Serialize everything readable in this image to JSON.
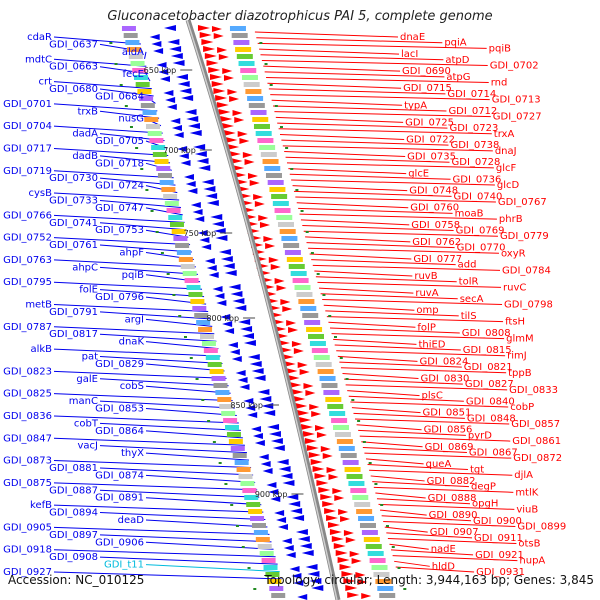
{
  "title": "Gluconacetobacter diazotrophicus PAI 5, complete genome",
  "accession": "Accession: NC_010125",
  "summary": "Topology: circular; Length: 3,944,163 bp; Genes: 3,845",
  "colors": {
    "forward": "#ff0000",
    "reverse": "#0000ee",
    "rna": "#00bbdd",
    "backbone": "#888888",
    "tick": "#228b22"
  },
  "kbp_ticks": [
    "650 kbp",
    "700 kbp",
    "750 kbp",
    "800 kbp",
    "850 kbp",
    "900 kbp"
  ],
  "left_labels": [
    {
      "t": "cdaR",
      "c": "reverse"
    },
    {
      "t": "GDI_0637",
      "c": "reverse"
    },
    {
      "t": "aldA",
      "c": "reverse"
    },
    {
      "t": "mdtC",
      "c": "reverse"
    },
    {
      "t": "GDI_0663",
      "c": "reverse"
    },
    {
      "t": "fecE",
      "c": "reverse"
    },
    {
      "t": "crt",
      "c": "reverse"
    },
    {
      "t": "GDI_0680",
      "c": "reverse"
    },
    {
      "t": "GDI_0684",
      "c": "reverse"
    },
    {
      "t": "GDI_0701",
      "c": "reverse"
    },
    {
      "t": "trxB",
      "c": "reverse"
    },
    {
      "t": "nusG",
      "c": "reverse"
    },
    {
      "t": "GDI_0704",
      "c": "reverse"
    },
    {
      "t": "dadA",
      "c": "reverse"
    },
    {
      "t": "GDI_0705",
      "c": "reverse"
    },
    {
      "t": "GDI_0717",
      "c": "reverse"
    },
    {
      "t": "dadB",
      "c": "reverse"
    },
    {
      "t": "GDI_0718",
      "c": "reverse"
    },
    {
      "t": "GDI_0719",
      "c": "reverse"
    },
    {
      "t": "GDI_0730",
      "c": "reverse"
    },
    {
      "t": "GDI_0724",
      "c": "reverse"
    },
    {
      "t": "cysB",
      "c": "reverse"
    },
    {
      "t": "GDI_0733",
      "c": "reverse"
    },
    {
      "t": "GDI_0747",
      "c": "reverse"
    },
    {
      "t": "GDI_0766",
      "c": "reverse"
    },
    {
      "t": "GDI_0741",
      "c": "reverse"
    },
    {
      "t": "GDI_0753",
      "c": "reverse"
    },
    {
      "t": "GDI_0752",
      "c": "reverse"
    },
    {
      "t": "GDI_0761",
      "c": "reverse"
    },
    {
      "t": "ahpF",
      "c": "reverse"
    },
    {
      "t": "GDI_0763",
      "c": "reverse"
    },
    {
      "t": "ahpC",
      "c": "reverse"
    },
    {
      "t": "pqiB",
      "c": "reverse"
    },
    {
      "t": "GDI_0795",
      "c": "reverse"
    },
    {
      "t": "folE",
      "c": "reverse"
    },
    {
      "t": "GDI_0796",
      "c": "reverse"
    },
    {
      "t": "metB",
      "c": "reverse"
    },
    {
      "t": "GDI_0791",
      "c": "reverse"
    },
    {
      "t": "argI",
      "c": "reverse"
    },
    {
      "t": "GDI_0787",
      "c": "reverse"
    },
    {
      "t": "GDI_0817",
      "c": "reverse"
    },
    {
      "t": "dnaK",
      "c": "reverse"
    },
    {
      "t": "alkB",
      "c": "reverse"
    },
    {
      "t": "pat",
      "c": "reverse"
    },
    {
      "t": "GDI_0829",
      "c": "reverse"
    },
    {
      "t": "GDI_0823",
      "c": "reverse"
    },
    {
      "t": "galE",
      "c": "reverse"
    },
    {
      "t": "cobS",
      "c": "reverse"
    },
    {
      "t": "GDI_0825",
      "c": "reverse"
    },
    {
      "t": "manC",
      "c": "reverse"
    },
    {
      "t": "GDI_0853",
      "c": "reverse"
    },
    {
      "t": "GDI_0836",
      "c": "reverse"
    },
    {
      "t": "cobT",
      "c": "reverse"
    },
    {
      "t": "GDI_0864",
      "c": "reverse"
    },
    {
      "t": "GDI_0847",
      "c": "reverse"
    },
    {
      "t": "vacJ",
      "c": "reverse"
    },
    {
      "t": "thyX",
      "c": "reverse"
    },
    {
      "t": "GDI_0873",
      "c": "reverse"
    },
    {
      "t": "GDI_0881",
      "c": "reverse"
    },
    {
      "t": "GDI_0874",
      "c": "reverse"
    },
    {
      "t": "GDI_0875",
      "c": "reverse"
    },
    {
      "t": "GDI_0887",
      "c": "reverse"
    },
    {
      "t": "GDI_0891",
      "c": "reverse"
    },
    {
      "t": "kefB",
      "c": "reverse"
    },
    {
      "t": "GDI_0894",
      "c": "reverse"
    },
    {
      "t": "deaD",
      "c": "reverse"
    },
    {
      "t": "GDI_0905",
      "c": "reverse"
    },
    {
      "t": "GDI_0897",
      "c": "reverse"
    },
    {
      "t": "GDI_0906",
      "c": "reverse"
    },
    {
      "t": "GDI_0918",
      "c": "reverse"
    },
    {
      "t": "GDI_0908",
      "c": "reverse"
    },
    {
      "t": "GDI_t11",
      "c": "rna"
    },
    {
      "t": "GDI_0927",
      "c": "reverse"
    }
  ],
  "right_labels": [
    {
      "t": "dnaE",
      "c": "forward"
    },
    {
      "t": "pqiA",
      "c": "forward"
    },
    {
      "t": "pqiB",
      "c": "forward"
    },
    {
      "t": "lacI",
      "c": "forward"
    },
    {
      "t": "atpD",
      "c": "forward"
    },
    {
      "t": "GDI_0702",
      "c": "forward"
    },
    {
      "t": "GDI_0690",
      "c": "forward"
    },
    {
      "t": "atpG",
      "c": "forward"
    },
    {
      "t": "rnd",
      "c": "forward"
    },
    {
      "t": "GDI_0715",
      "c": "forward"
    },
    {
      "t": "GDI_0714",
      "c": "forward"
    },
    {
      "t": "GDI_0713",
      "c": "forward"
    },
    {
      "t": "typA",
      "c": "forward"
    },
    {
      "t": "GDI_0712",
      "c": "forward"
    },
    {
      "t": "GDI_0727",
      "c": "forward"
    },
    {
      "t": "GDI_0725",
      "c": "forward"
    },
    {
      "t": "GDI_0723",
      "c": "forward"
    },
    {
      "t": "trxA",
      "c": "forward"
    },
    {
      "t": "GDI_0722",
      "c": "forward"
    },
    {
      "t": "GDI_0738",
      "c": "forward"
    },
    {
      "t": "dnaJ",
      "c": "forward"
    },
    {
      "t": "GDI_0735",
      "c": "forward"
    },
    {
      "t": "GDI_0728",
      "c": "forward"
    },
    {
      "t": "glcF",
      "c": "forward"
    },
    {
      "t": "glcE",
      "c": "forward"
    },
    {
      "t": "GDI_0736",
      "c": "forward"
    },
    {
      "t": "glcD",
      "c": "forward"
    },
    {
      "t": "GDI_0748",
      "c": "forward"
    },
    {
      "t": "GDI_0740",
      "c": "forward"
    },
    {
      "t": "GDI_0767",
      "c": "forward"
    },
    {
      "t": "GDI_0760",
      "c": "forward"
    },
    {
      "t": "moaB",
      "c": "forward"
    },
    {
      "t": "phrB",
      "c": "forward"
    },
    {
      "t": "GDI_0758",
      "c": "forward"
    },
    {
      "t": "GDI_0769",
      "c": "forward"
    },
    {
      "t": "GDI_0779",
      "c": "forward"
    },
    {
      "t": "GDI_0762",
      "c": "forward"
    },
    {
      "t": "GDI_0770",
      "c": "forward"
    },
    {
      "t": "oxyR",
      "c": "forward"
    },
    {
      "t": "GDI_0777",
      "c": "forward"
    },
    {
      "t": "add",
      "c": "forward"
    },
    {
      "t": "GDI_0784",
      "c": "forward"
    },
    {
      "t": "ruvB",
      "c": "forward"
    },
    {
      "t": "tolR",
      "c": "forward"
    },
    {
      "t": "ruvC",
      "c": "forward"
    },
    {
      "t": "ruvA",
      "c": "forward"
    },
    {
      "t": "secA",
      "c": "forward"
    },
    {
      "t": "GDI_0798",
      "c": "forward"
    },
    {
      "t": "omp",
      "c": "forward"
    },
    {
      "t": "tilS",
      "c": "forward"
    },
    {
      "t": "ftsH",
      "c": "forward"
    },
    {
      "t": "folP",
      "c": "forward"
    },
    {
      "t": "GDI_0808",
      "c": "forward"
    },
    {
      "t": "glmM",
      "c": "forward"
    },
    {
      "t": "thiED",
      "c": "forward"
    },
    {
      "t": "GDI_0815",
      "c": "forward"
    },
    {
      "t": "rimJ",
      "c": "forward"
    },
    {
      "t": "GDI_0824",
      "c": "forward"
    },
    {
      "t": "GDI_0821",
      "c": "forward"
    },
    {
      "t": "tppB",
      "c": "forward"
    },
    {
      "t": "GDI_0830",
      "c": "forward"
    },
    {
      "t": "GDI_0827",
      "c": "forward"
    },
    {
      "t": "GDI_0833",
      "c": "forward"
    },
    {
      "t": "plsC",
      "c": "forward"
    },
    {
      "t": "GDI_0840",
      "c": "forward"
    },
    {
      "t": "cobP",
      "c": "forward"
    },
    {
      "t": "GDI_0851",
      "c": "forward"
    },
    {
      "t": "GDI_0848",
      "c": "forward"
    },
    {
      "t": "GDI_0857",
      "c": "forward"
    },
    {
      "t": "GDI_0856",
      "c": "forward"
    },
    {
      "t": "pyrD",
      "c": "forward"
    },
    {
      "t": "GDI_0861",
      "c": "forward"
    },
    {
      "t": "GDI_0869",
      "c": "forward"
    },
    {
      "t": "GDI_0867",
      "c": "forward"
    },
    {
      "t": "GDI_0872",
      "c": "forward"
    },
    {
      "t": "queA",
      "c": "forward"
    },
    {
      "t": "tgt",
      "c": "forward"
    },
    {
      "t": "djlA",
      "c": "forward"
    },
    {
      "t": "GDI_0882",
      "c": "forward"
    },
    {
      "t": "degP",
      "c": "forward"
    },
    {
      "t": "mtlK",
      "c": "forward"
    },
    {
      "t": "GDI_0888",
      "c": "forward"
    },
    {
      "t": "opgH",
      "c": "forward"
    },
    {
      "t": "viuB",
      "c": "forward"
    },
    {
      "t": "GDI_0890",
      "c": "forward"
    },
    {
      "t": "GDI_0900",
      "c": "forward"
    },
    {
      "t": "GDI_0899",
      "c": "forward"
    },
    {
      "t": "GDI_0907",
      "c": "forward"
    },
    {
      "t": "GDI_0911",
      "c": "forward"
    },
    {
      "t": "otsB",
      "c": "forward"
    },
    {
      "t": "nadE",
      "c": "forward"
    },
    {
      "t": "GDI_0921",
      "c": "forward"
    },
    {
      "t": "hupA",
      "c": "forward"
    },
    {
      "t": "hldD",
      "c": "forward"
    },
    {
      "t": "GDI_0931",
      "c": "forward"
    }
  ]
}
